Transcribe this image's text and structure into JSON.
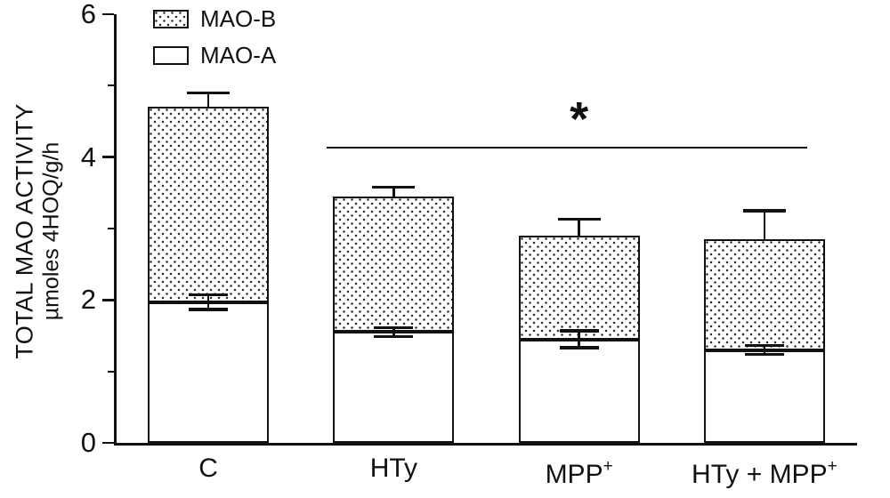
{
  "figure": {
    "y_axis_label_line1": "TOTAL MAO ACTIVITY",
    "y_axis_label_line2": "µmoles 4HOQ/g/h"
  },
  "chart_data": {
    "type": "bar",
    "stacked": true,
    "title": "",
    "ylabel": "TOTAL MAO ACTIVITY µmoles 4HOQ/g/h",
    "ylim": [
      0,
      6
    ],
    "yticks_major": [
      0,
      2,
      4,
      6
    ],
    "yticks_minor": [
      1,
      3,
      5
    ],
    "grid": false,
    "legend_position": "top-left-inside",
    "categories": [
      "C",
      "HTy",
      "MPP+",
      "HTy + MPP+"
    ],
    "categories_display": [
      {
        "text": "C",
        "sup": ""
      },
      {
        "text": "HTy",
        "sup": ""
      },
      {
        "text": "MPP",
        "sup": "+"
      },
      {
        "text": "HTy + MPP",
        "sup": "+"
      }
    ],
    "legend": [
      {
        "label": "MAO-B",
        "pattern": "stippled"
      },
      {
        "label": "MAO-A",
        "pattern": "open"
      }
    ],
    "series": [
      {
        "name": "MAO-A",
        "values": [
          1.97,
          1.55,
          1.45,
          1.3
        ],
        "errors": [
          0.1,
          0.06,
          0.12,
          0.06
        ]
      },
      {
        "name": "MAO-B",
        "values": [
          2.73,
          1.9,
          1.45,
          1.55
        ]
      }
    ],
    "stack_totals": [
      4.7,
      3.45,
      2.9,
      2.85
    ],
    "total_errors": [
      0.2,
      0.13,
      0.23,
      0.4
    ],
    "significance": {
      "symbol": "*",
      "spans_categories": [
        "HTy",
        "MPP+",
        "HTy + MPP+"
      ],
      "line_y": 4.15
    }
  },
  "colors": {
    "axis": "#111111",
    "bar_fill": "#ffffff",
    "pattern_dot": "#2b2b2b"
  }
}
